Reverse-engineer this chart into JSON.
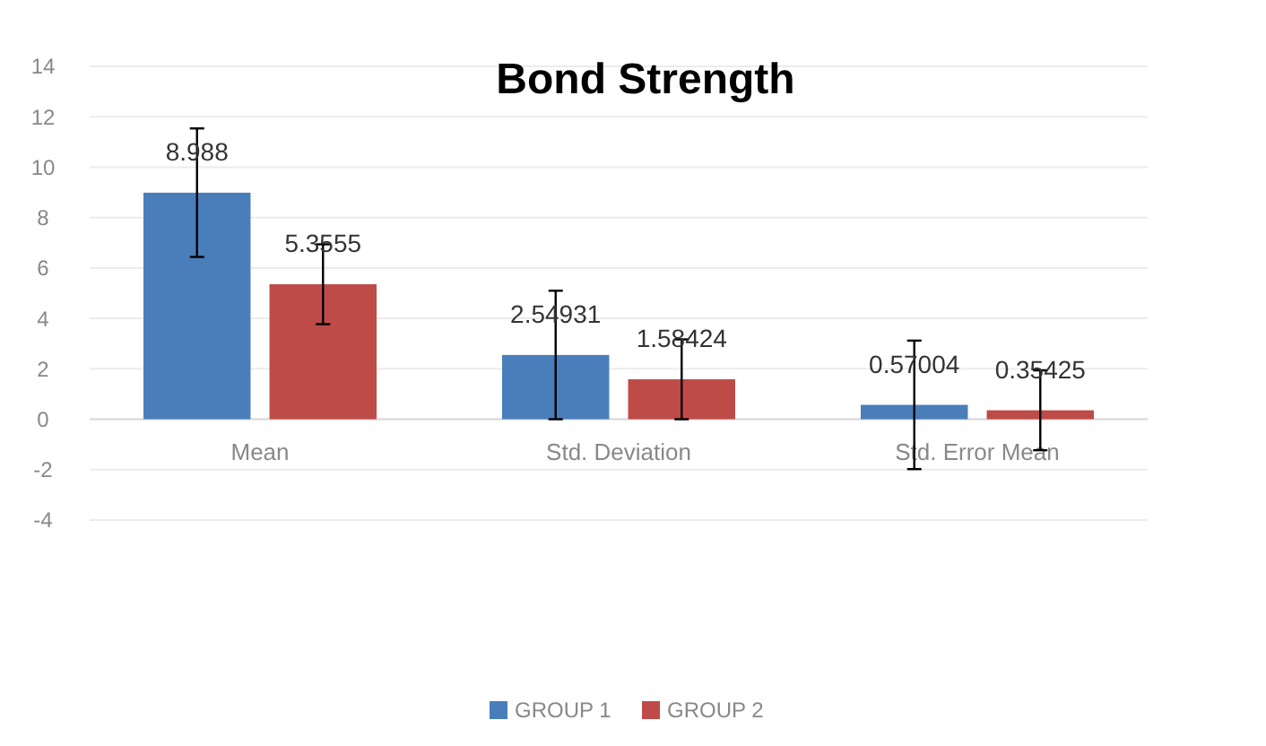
{
  "chart_data": {
    "type": "bar",
    "title": "Bond Strength",
    "categories": [
      "Mean",
      "Std. Deviation",
      "Std. Error Mean"
    ],
    "series": [
      {
        "name": "GROUP 1",
        "color": "#4a7ebb",
        "values": [
          8.988,
          2.54931,
          0.57004
        ],
        "errors": [
          2.54931,
          2.54931,
          2.54931
        ]
      },
      {
        "name": "GROUP 2",
        "color": "#be4b48",
        "values": [
          5.3555,
          1.58424,
          0.35425
        ],
        "errors": [
          1.58424,
          1.58424,
          1.58424
        ]
      }
    ],
    "ylim": [
      -4,
      14
    ],
    "yticks": [
      -4,
      -2,
      0,
      2,
      4,
      6,
      8,
      10,
      12,
      14
    ],
    "grid": "y",
    "legend": "bottom",
    "data_labels": true
  }
}
